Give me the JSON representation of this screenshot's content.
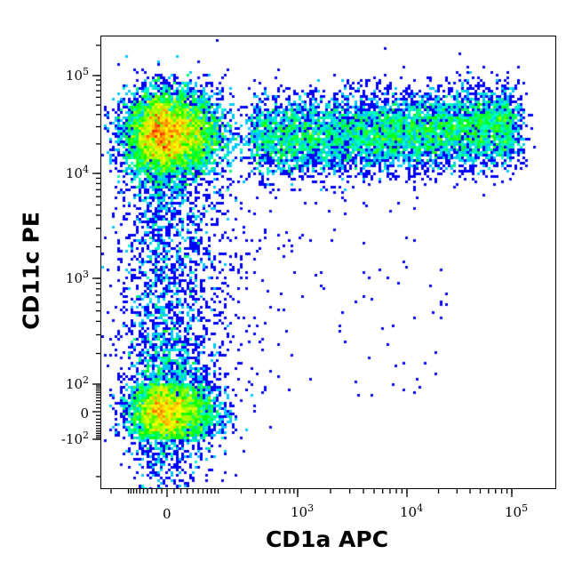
{
  "chart_data": {
    "type": "scatter",
    "subtype": "density-dot-plot",
    "title": "",
    "xlabel": "CD1a APC",
    "ylabel": "CD11c PE",
    "x_scale": "biexponential",
    "y_scale": "biexponential",
    "xlim": [
      -300,
      200000
    ],
    "ylim": [
      -250,
      250000
    ],
    "x_ticks": [
      {
        "value": 0,
        "label": "0",
        "exp": ""
      },
      {
        "value": 1000,
        "label": "10",
        "exp": "3"
      },
      {
        "value": 10000,
        "label": "10",
        "exp": "4"
      },
      {
        "value": 100000,
        "label": "10",
        "exp": "5"
      }
    ],
    "y_ticks": [
      {
        "value": -100,
        "label": "-10",
        "exp": "2"
      },
      {
        "value": 0,
        "label": "0",
        "exp": ""
      },
      {
        "value": 100,
        "label": "10",
        "exp": "2"
      },
      {
        "value": 1000,
        "label": "10",
        "exp": "3"
      },
      {
        "value": 10000,
        "label": "10",
        "exp": "4"
      },
      {
        "value": 100000,
        "label": "10",
        "exp": "5"
      }
    ],
    "populations": [
      {
        "description": "CD1a- CD11c+",
        "x_center": 0,
        "y_center": 25000,
        "relative_size": 0.38
      },
      {
        "description": "CD1a+ CD11c+",
        "x_range": [
          300,
          100000
        ],
        "y_center": 25000,
        "relative_size": 0.3
      },
      {
        "description": "CD1a- CD11c-",
        "x_center": 0,
        "y_center": 0,
        "relative_size": 0.25
      },
      {
        "description": "CD1a- CD11c intermediate",
        "x_center": 0,
        "y_range": [
          100,
          8000
        ],
        "relative_size": 0.07
      }
    ],
    "colormap": [
      "#0000ff",
      "#00ffff",
      "#00ff00",
      "#ffff00",
      "#ff0000"
    ],
    "grid": false,
    "legend": "none"
  }
}
